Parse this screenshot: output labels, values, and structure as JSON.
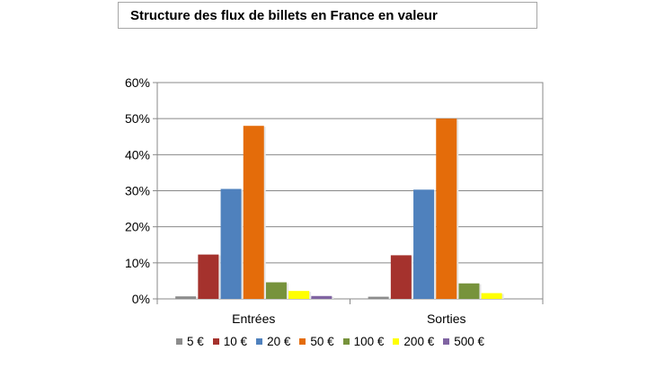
{
  "chart_data": {
    "type": "bar",
    "title": "Structure des flux de billets en France en valeur",
    "categories": [
      "Entrées",
      "Sorties"
    ],
    "series": [
      {
        "name": "5 €",
        "color": "#8c8c8c",
        "values": [
          0.7,
          0.6
        ]
      },
      {
        "name": "10 €",
        "color": "#a5322d",
        "values": [
          12.3,
          12.1
        ]
      },
      {
        "name": "20 €",
        "color": "#4f81bd",
        "values": [
          30.5,
          30.3
        ]
      },
      {
        "name": "50 €",
        "color": "#e46c0a",
        "values": [
          48.0,
          50.0
        ]
      },
      {
        "name": "100 €",
        "color": "#77933c",
        "values": [
          4.6,
          4.3
        ]
      },
      {
        "name": "200 €",
        "color": "#ffff00",
        "values": [
          2.2,
          1.6
        ]
      },
      {
        "name": "500 €",
        "color": "#8064a2",
        "values": [
          0.8,
          0.0
        ]
      }
    ],
    "yticks": [
      "0%",
      "10%",
      "20%",
      "30%",
      "40%",
      "50%",
      "60%"
    ],
    "ylim": [
      0,
      60
    ],
    "grid": true,
    "legend": "bottom"
  }
}
